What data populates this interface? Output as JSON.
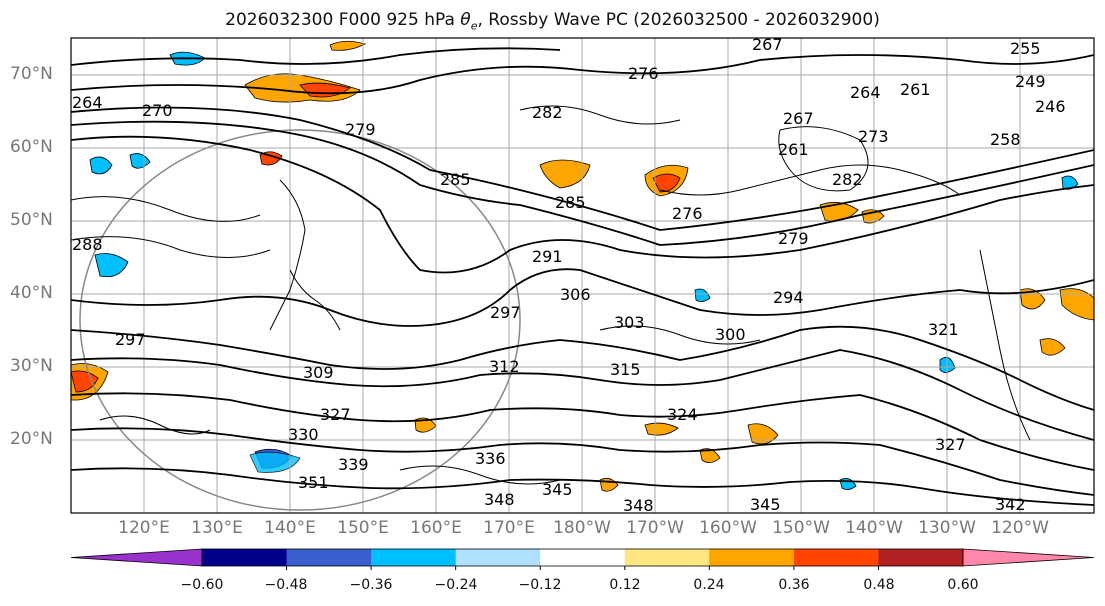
{
  "title": {
    "prefix": "2026032300 F000 925 hPa ",
    "theta_symbol": "θ",
    "theta_sub": "e",
    "suffix": ", Rossby Wave PC (2026032500 - 2026032900)"
  },
  "lat_labels": [
    "70°N",
    "60°N",
    "50°N",
    "40°N",
    "30°N",
    "20°N"
  ],
  "lon_labels": [
    "120°E",
    "130°E",
    "140°E",
    "150°E",
    "160°E",
    "170°E",
    "180°W",
    "170°W",
    "160°W",
    "150°W",
    "140°W",
    "130°W",
    "120°W"
  ],
  "contour_labels": [
    "264",
    "270",
    "276",
    "282",
    "267",
    "255",
    "249",
    "246",
    "264",
    "261",
    "258",
    "267",
    "273",
    "279",
    "285",
    "285",
    "282",
    "276",
    "279",
    "294",
    "291",
    "297",
    "306",
    "303",
    "300",
    "309",
    "312",
    "315",
    "321",
    "327",
    "330",
    "336",
    "339",
    "348",
    "348",
    "345",
    "342",
    "324",
    "327",
    "351",
    "345",
    "288",
    "297",
    "261"
  ],
  "colorbar": {
    "colors": [
      "#9932cc",
      "#00008b",
      "#3a5fcd",
      "#00bfff",
      "#b0e0ff",
      "#ffffff",
      "#ffe680",
      "#ffa500",
      "#ff4500",
      "#b22222",
      "#ff88aa"
    ],
    "tick_labels": [
      "−0.60",
      "−0.48",
      "−0.36",
      "−0.24",
      "−0.12",
      "0.12",
      "0.24",
      "0.36",
      "0.48",
      "0.60"
    ]
  },
  "map_data": {
    "lat_range": [
      10,
      75
    ],
    "lon_range": [
      115,
      255
    ],
    "shading_positive": "#ffa500",
    "shading_strong": "#ff4500",
    "shading_negative": "#00bfff",
    "contour_color": "#000000",
    "grid_color": "#aaaaaa"
  }
}
